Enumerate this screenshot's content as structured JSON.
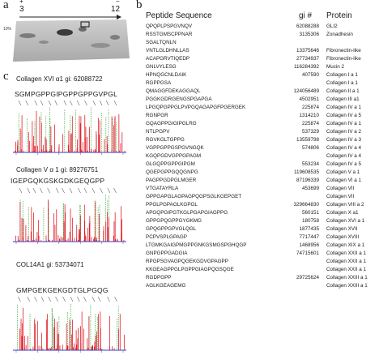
{
  "panel_a": {
    "letter": "a",
    "lane_left": "3",
    "lane_right": "12",
    "sign_left": "+",
    "sign_right": "−",
    "gel_label": "10%"
  },
  "panel_b": {
    "letter": "b",
    "headers": {
      "peptide": "Peptide Sequence",
      "gi": "gi #",
      "protein": "Protein"
    },
    "rows": [
      {
        "peptide": "QPQPLPSPGVNQV",
        "gi": "62088288",
        "protein": "GLI2"
      },
      {
        "peptide": "RSSTGMSCPPNAR",
        "gi": "3135306",
        "protein": "Zonadhesin"
      },
      {
        "peptide": "SGALTQNLN",
        "gi": "",
        "protein": ""
      },
      {
        "peptide": "VNTLGLDHNLLAS",
        "gi": "13375646",
        "protein": "Fibronectin-like"
      },
      {
        "peptide": "ACAPGRVTIQEDP",
        "gi": "27734937",
        "protein": "Fibronectin-like"
      },
      {
        "peptide": "GNLVYLESG",
        "gi": "116284392",
        "protein": "Mucin 2"
      },
      {
        "peptide": "HPNQGCNLDAIK",
        "gi": "407590",
        "protein": "Collagen I  a 1"
      },
      {
        "peptide": "RGPPGSA",
        "gi": "",
        "protein": "Collagen I  a 1"
      },
      {
        "peptide": "QMAGGFDEKAGGAQL",
        "gi": "124056489",
        "protein": "Collagen II a 1"
      },
      {
        "peptide": "PGGKGDRGENGSPGAPGA",
        "gi": "4502951",
        "protein": "Collagen III a1"
      },
      {
        "peptide": "LPGQPGPPGLPVPGQAGAPGFPGERGEK",
        "gi": "225874",
        "protein": "Collagen IV a 1"
      },
      {
        "peptide": "RGNPGR",
        "gi": "1314210",
        "protein": "Collagen IV a 5"
      },
      {
        "peptide": "GQAGPPGIGIPGLRG",
        "gi": "225874",
        "protein": "Collagen IV a 1"
      },
      {
        "peptide": "NTLPGPV",
        "gi": "537329",
        "protein": "Collagen IV a 2"
      },
      {
        "peptide": "RGVKGLTGPPG",
        "gi": "13559798",
        "protein": "Collagen IV a 3"
      },
      {
        "peptide": "VGPPGPPGSPGVNGQK",
        "gi": "574806",
        "protein": "Collagen IV a 4"
      },
      {
        "peptide": "KGQPGDVGPPGPAGM",
        "gi": "",
        "protein": "Collagen IV a 4"
      },
      {
        "peptide": "GLGQPPGPPGIPGM",
        "gi": "553234",
        "protein": "Collagen IV a 5"
      },
      {
        "peptide": "QGEPGPPGQQGNPG",
        "gi": "119608535",
        "protein": "Collagen V  a 1"
      },
      {
        "peptide": "PAGPPGDPGLMGER",
        "gi": "87196339",
        "protein": "Collagen VI a 1"
      },
      {
        "peptide": "VTGATAYRLA",
        "gi": "453699",
        "protein": "Collagen VII"
      },
      {
        "peptide": "GPPGAPGLAGPAGPQGPSGLKGEPGET",
        "gi": "",
        "protein": "Collagen VII"
      },
      {
        "peptide": "PPGLPGPAGLKGPGL",
        "gi": "329664830",
        "protein": "Collagen VIII a 2"
      },
      {
        "peptide": "APGQPGIPGTKGLPGAPGIAGPPG",
        "gi": "560151",
        "protein": "Collagen X a1"
      },
      {
        "peptide": "GPPGPQGPPGYGKMG",
        "gi": "180758",
        "protein": "Collagen XVI a 1"
      },
      {
        "peptide": "GPQGPPGPVGLQGL",
        "gi": "1877435",
        "protein": "Collagen XVII"
      },
      {
        "peptide": "PCPVSPLGPAGP",
        "gi": "7717447",
        "protein": "Collagen XVIII"
      },
      {
        "peptide": "LTGMKGAIGPMGPPGNKGSMGSPGHQGP",
        "gi": "1468956",
        "protein": "Collagen XIX a 1"
      },
      {
        "peptide": "GNPGPPGADGIA",
        "gi": "74715601",
        "protein": "Collagen XXII a 1"
      },
      {
        "peptide": "RPGPSGVAGPQGEKGDVGPAGPP",
        "gi": "",
        "protein": "Collagen XXII a 1"
      },
      {
        "peptide": "KKGEAGPPGLPGPPGIAGPQGSQGE",
        "gi": "",
        "protein": "Collagen XXII a 1"
      },
      {
        "peptide": "RGDPGPP",
        "gi": "29725624",
        "protein": "Collagen XXIII a 1"
      },
      {
        "peptide": "AGLKGEAGEMG",
        "gi": "",
        "protein": "Collagen XXIII a 1"
      }
    ]
  },
  "panel_c": {
    "letter": "c",
    "spectra": [
      {
        "title": "Collagen XVI α1  gi: 62088722",
        "sequence": "SGMPGPPGIPGPPGPPGVPGL"
      },
      {
        "title": "Collagen V α 1  gi: 89276751",
        "sequence": "IGEPGQKGSKGDKGEQGPP"
      },
      {
        "title": "COL14A1  gi: 53734071",
        "sequence": "GMPGEKGEKGDTGLPGQG"
      }
    ]
  },
  "colors": {
    "red": "#e0202a",
    "green": "#3aaa3a",
    "blue": "#3a3acc",
    "gel": "#bdbdbd"
  }
}
